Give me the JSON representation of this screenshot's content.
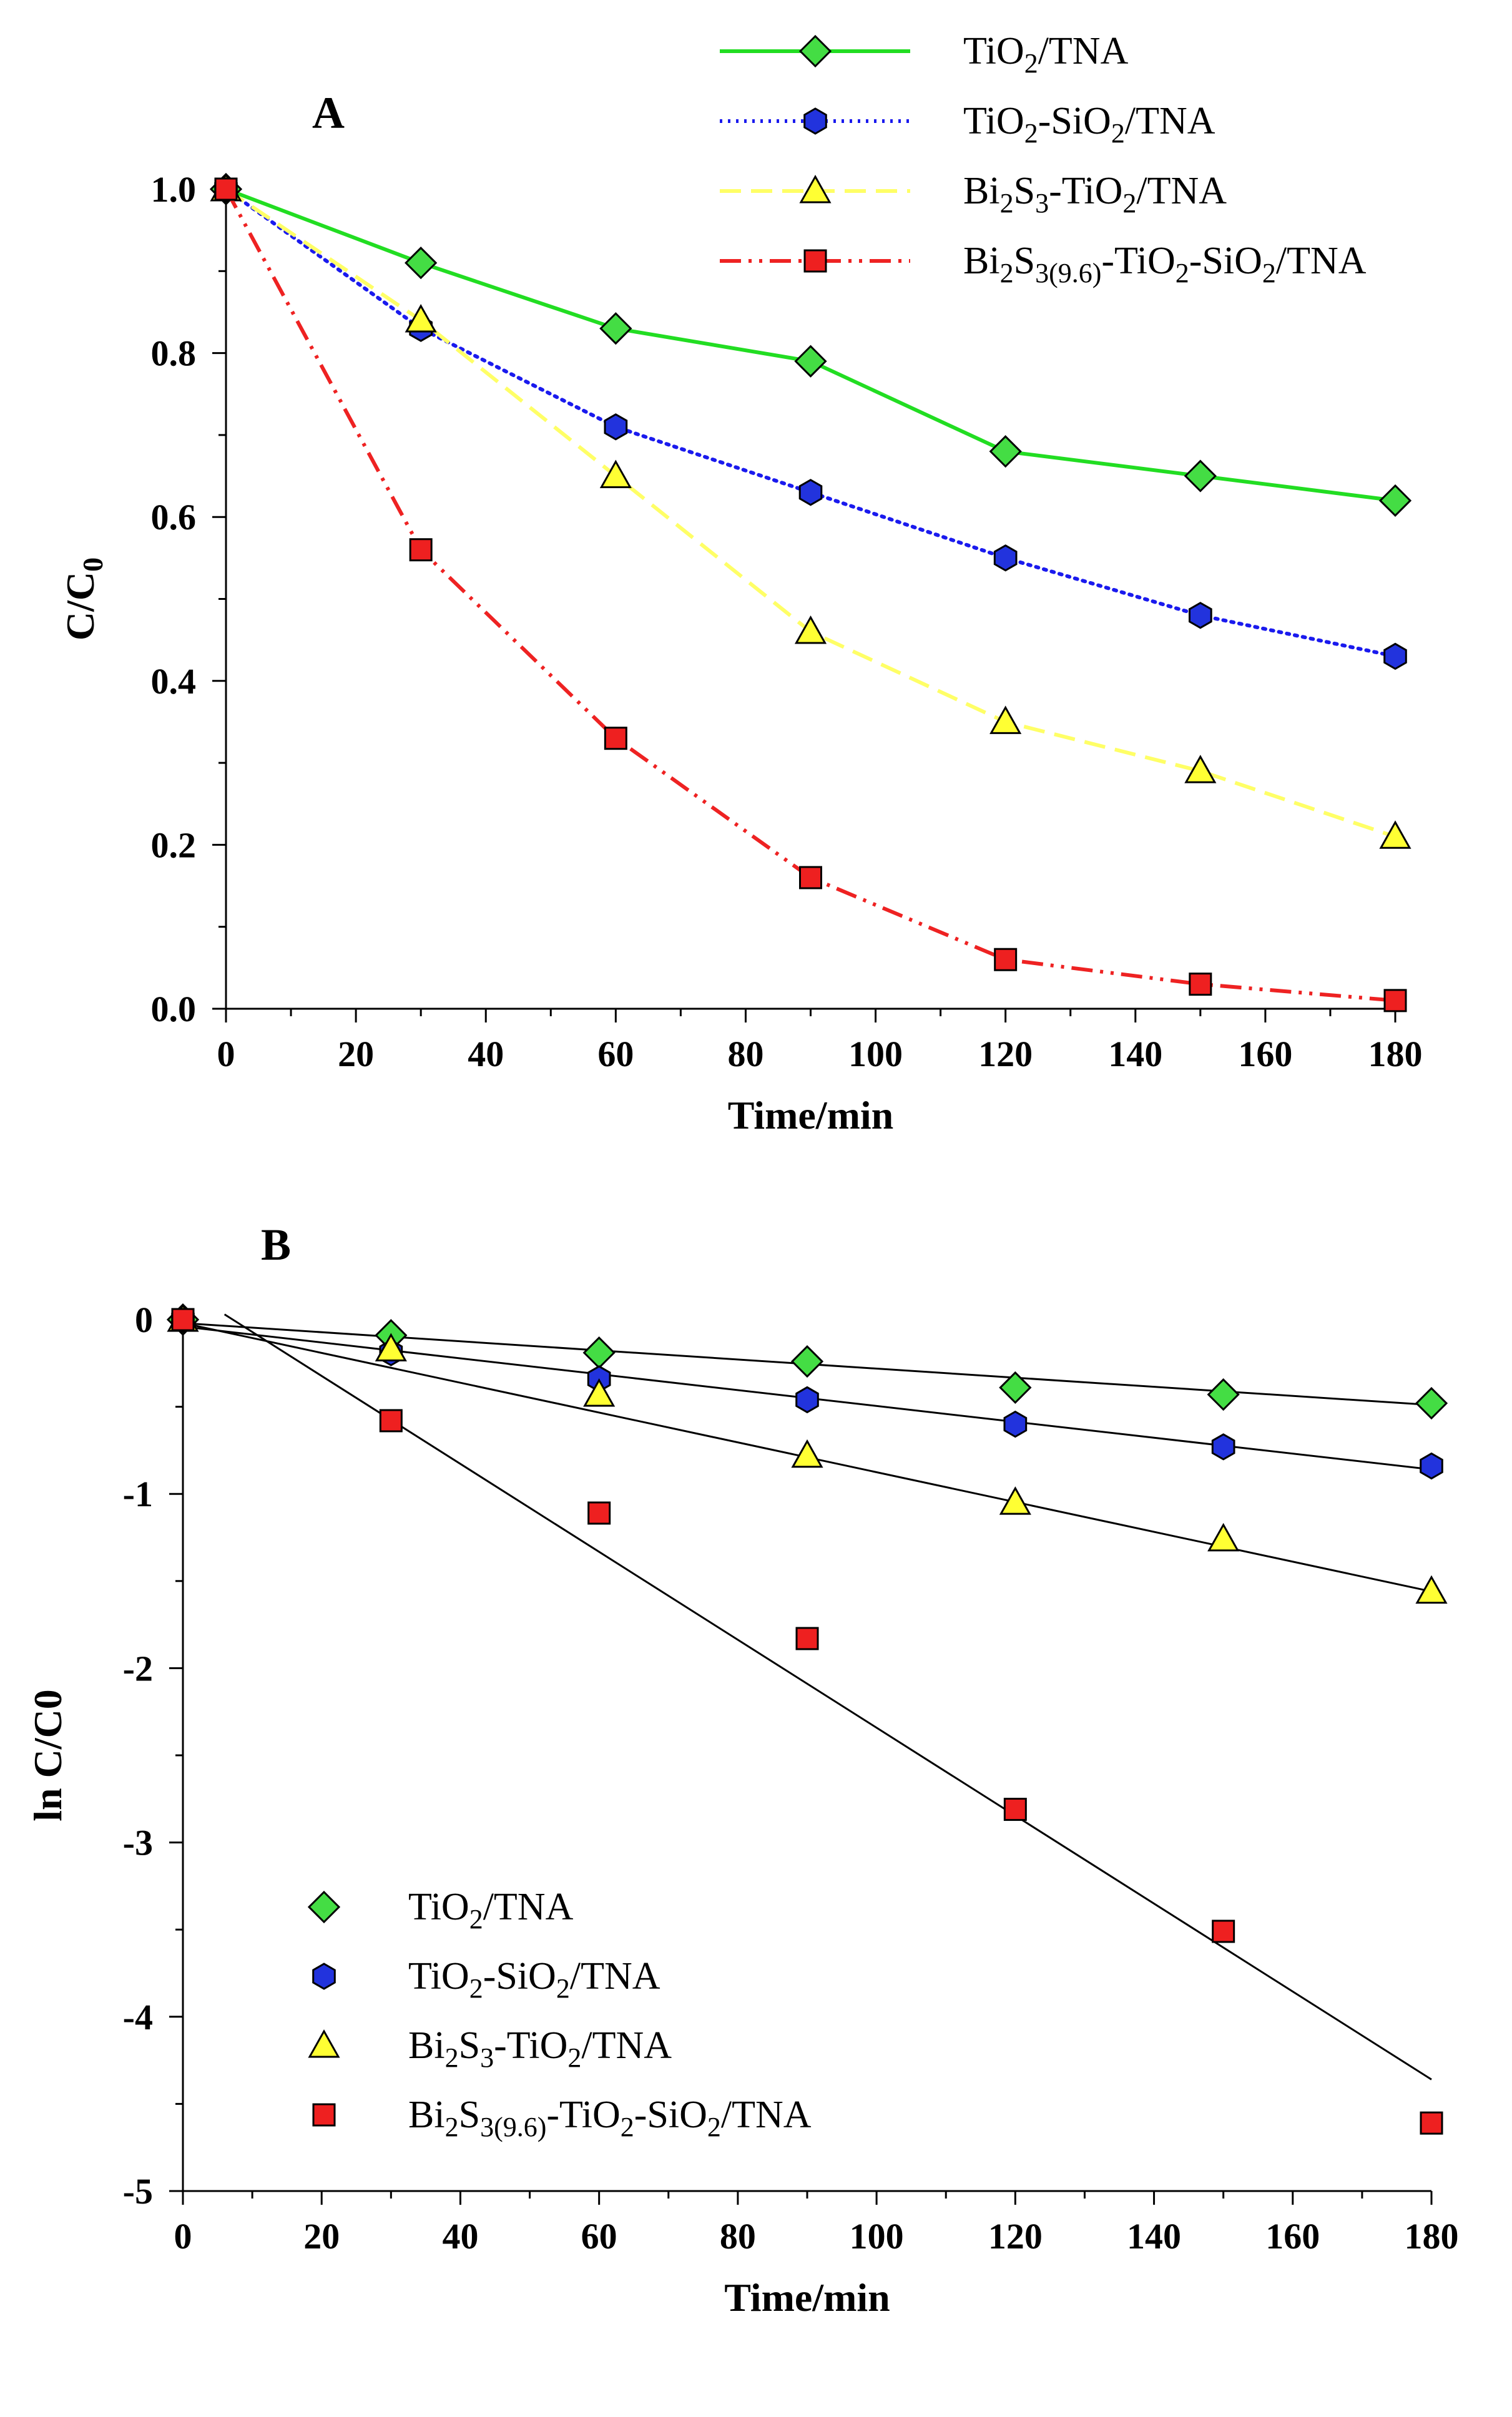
{
  "chart_data": [
    {
      "panel_label": "A",
      "type": "line",
      "xlabel": "Time/min",
      "ylabel": "C/C",
      "ylabel_sub": "0",
      "xlim": [
        0,
        180
      ],
      "ylim": [
        0,
        1.0
      ],
      "x_ticks": [
        0,
        20,
        40,
        60,
        80,
        100,
        120,
        140,
        160,
        180
      ],
      "y_ticks": [
        "0.0",
        "0.2",
        "0.4",
        "0.6",
        "0.8",
        "1.0"
      ],
      "legend_position": "top-right, outside axes",
      "x": [
        0,
        30,
        60,
        90,
        120,
        150,
        180
      ],
      "series": [
        {
          "name": "TiO2/TNA",
          "marker": "diamond",
          "line": "solid",
          "color": "#22dd22",
          "marker_color": "#44dd44",
          "values": [
            1.0,
            0.91,
            0.83,
            0.79,
            0.68,
            0.65,
            0.62
          ]
        },
        {
          "name": "TiO2-SiO2/TNA",
          "marker": "hexagon",
          "line": "dotted",
          "color": "#1a1aee",
          "marker_color": "#2233dd",
          "values": [
            1.0,
            0.83,
            0.71,
            0.63,
            0.55,
            0.48,
            0.43
          ]
        },
        {
          "name": "Bi2S3-TiO2/TNA",
          "marker": "triangle",
          "line": "dashed",
          "color": "#ffff66",
          "marker_color": "#ffff33",
          "values": [
            1.0,
            0.84,
            0.65,
            0.46,
            0.35,
            0.29,
            0.21
          ]
        },
        {
          "name": "Bi2S3(9.6)-TiO2-SiO2/TNA",
          "marker": "square",
          "line": "dash-dot-dot",
          "color": "#ee2222",
          "marker_color": "#ee2020",
          "values": [
            1.0,
            0.56,
            0.33,
            0.16,
            0.06,
            0.03,
            0.01
          ]
        }
      ]
    },
    {
      "panel_label": "B",
      "type": "scatter",
      "xlabel": "Time/min",
      "ylabel": "ln C/C0",
      "xlim": [
        0,
        180
      ],
      "ylim": [
        -5,
        0
      ],
      "x_ticks": [
        0,
        20,
        40,
        60,
        80,
        100,
        120,
        140,
        160,
        180
      ],
      "y_ticks": [
        "0",
        "-1",
        "-2",
        "-3",
        "-4",
        "-5"
      ],
      "legend_position": "bottom-left",
      "x": [
        0,
        30,
        60,
        90,
        120,
        150,
        180
      ],
      "series": [
        {
          "name": "TiO2/TNA",
          "marker": "diamond",
          "marker_color": "#44dd44",
          "values": [
            0,
            -0.09,
            -0.19,
            -0.24,
            -0.39,
            -0.43,
            -0.48
          ],
          "fit": {
            "x": [
              0,
              180
            ],
            "y": [
              -0.02,
              -0.49
            ]
          }
        },
        {
          "name": "TiO2-SiO2/TNA",
          "marker": "hexagon",
          "marker_color": "#2233dd",
          "values": [
            0,
            -0.19,
            -0.34,
            -0.46,
            -0.6,
            -0.73,
            -0.84
          ],
          "fit": {
            "x": [
              0,
              180
            ],
            "y": [
              -0.04,
              -0.86
            ]
          }
        },
        {
          "name": "Bi2S3-TiO2/TNA",
          "marker": "triangle",
          "marker_color": "#ffff33",
          "values": [
            0,
            -0.17,
            -0.43,
            -0.78,
            -1.05,
            -1.26,
            -1.56
          ],
          "fit": {
            "x": [
              0,
              180
            ],
            "y": [
              -0.02,
              -1.56
            ]
          }
        },
        {
          "name": "Bi2S3(9.6)-TiO2-SiO2/TNA",
          "marker": "square",
          "marker_color": "#ee2020",
          "values": [
            0,
            -0.58,
            -1.11,
            -1.83,
            -2.81,
            -3.51,
            -4.61
          ],
          "fit": {
            "x": [
              6,
              180
            ],
            "y": [
              0.03,
              -4.36
            ]
          }
        }
      ]
    }
  ],
  "legend_labels": [
    {
      "parts": [
        [
          "TiO",
          ""
        ],
        [
          "2",
          "sub"
        ],
        [
          "/TNA",
          ""
        ]
      ]
    },
    {
      "parts": [
        [
          "TiO",
          ""
        ],
        [
          "2",
          "sub"
        ],
        [
          "-SiO",
          ""
        ],
        [
          "2",
          "sub"
        ],
        [
          "/TNA",
          ""
        ]
      ]
    },
    {
      "parts": [
        [
          "Bi",
          ""
        ],
        [
          "2",
          "sub"
        ],
        [
          "S",
          ""
        ],
        [
          "3",
          "sub"
        ],
        [
          "-TiO",
          ""
        ],
        [
          "2",
          "sub"
        ],
        [
          "/TNA",
          ""
        ]
      ]
    },
    {
      "parts": [
        [
          "Bi",
          ""
        ],
        [
          "2",
          "sub"
        ],
        [
          "S",
          ""
        ],
        [
          "3(9.6)",
          "sub"
        ],
        [
          "-TiO",
          ""
        ],
        [
          "2",
          "sub"
        ],
        [
          "-SiO",
          ""
        ],
        [
          "2",
          "sub"
        ],
        [
          "/TNA",
          ""
        ]
      ]
    }
  ]
}
